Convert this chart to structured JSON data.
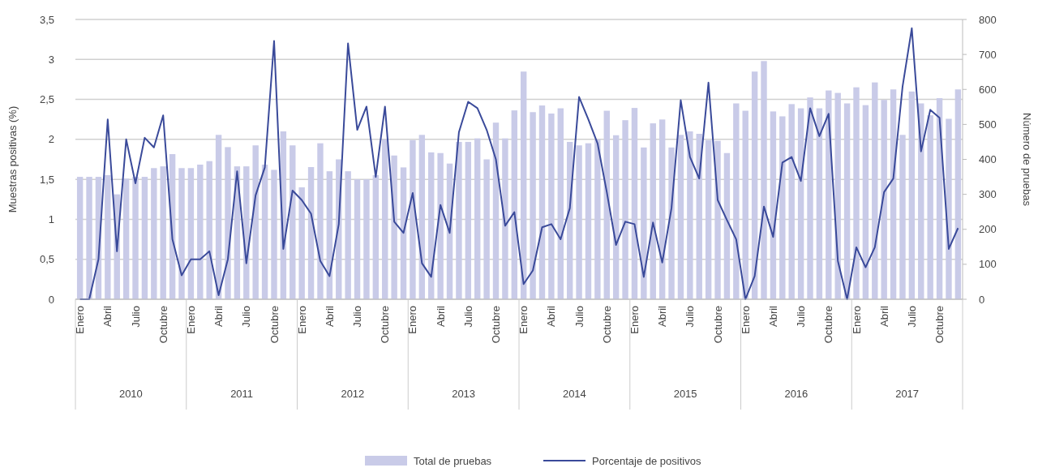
{
  "chart_data": {
    "type": "bar",
    "ylabel": "Muestras positivas (%)",
    "y2label": "Número de pruebas",
    "categories": [
      "Enero",
      null,
      null,
      "Abril",
      null,
      null,
      "Julio",
      null,
      null,
      "Octubre",
      null,
      null,
      "Enero",
      null,
      null,
      "Abril",
      null,
      null,
      "Julio",
      null,
      null,
      "Octubre",
      null,
      null,
      "Enero",
      null,
      null,
      "Abril",
      null,
      null,
      "Julio",
      null,
      null,
      "Octubre",
      null,
      null,
      "Enero",
      null,
      null,
      "Abril",
      null,
      null,
      "Julio",
      null,
      null,
      "Octubre",
      null,
      null,
      "Enero",
      null,
      null,
      "Abril",
      null,
      null,
      "Julio",
      null,
      null,
      "Octubre",
      null,
      null,
      "Enero",
      null,
      null,
      "Abril",
      null,
      null,
      "Julio",
      null,
      null,
      "Octubre",
      null,
      null,
      "Enero",
      null,
      null,
      "Abril",
      null,
      null,
      "Julio",
      null,
      null,
      "Octubre",
      null,
      null,
      "Enero",
      null,
      null,
      "Abril",
      null,
      null,
      "Julio",
      null,
      null,
      "Octubre",
      null,
      null
    ],
    "annotations": [
      "2010",
      "2011",
      "2012",
      "2013",
      "2014",
      "2015",
      "2016",
      "2017"
    ],
    "series": [
      {
        "name": "Total de pruebas",
        "axis": "y2",
        "color": "#c9cbe8",
        "values": [
          350,
          350,
          350,
          355,
          300,
          345,
          350,
          350,
          375,
          380,
          415,
          375,
          375,
          385,
          395,
          470,
          435,
          380,
          380,
          440,
          385,
          370,
          480,
          440,
          320,
          378,
          446,
          366,
          400,
          366,
          343,
          343,
          355,
          457,
          411,
          377,
          455,
          470,
          420,
          418,
          388,
          450,
          450,
          460,
          400,
          505,
          460,
          540,
          651,
          535,
          554,
          531,
          546,
          450,
          440,
          446,
          457,
          539,
          469,
          512,
          547,
          434,
          503,
          514,
          434,
          470,
          480,
          473,
          455,
          453,
          418,
          560,
          539,
          651,
          681,
          537,
          523,
          558,
          546,
          577,
          546,
          597,
          590,
          560,
          606,
          555,
          620,
          570,
          600,
          470,
          594,
          560,
          526,
          575,
          516,
          600
        ]
      },
      {
        "name": "Porcentaje de positivos",
        "type": "line",
        "axis": "y",
        "color": "#3a4a9a",
        "values": [
          0,
          0,
          0.5,
          2.25,
          0.6,
          2.0,
          1.45,
          2.02,
          1.9,
          2.3,
          0.75,
          0.3,
          0.5,
          0.5,
          0.6,
          0.05,
          0.5,
          1.6,
          0.45,
          1.3,
          1.65,
          3.23,
          0.63,
          1.36,
          1.24,
          1.07,
          0.48,
          0.29,
          0.94,
          3.2,
          2.12,
          2.41,
          1.53,
          2.41,
          0.97,
          0.83,
          1.33,
          0.45,
          0.28,
          1.18,
          0.83,
          2.09,
          2.47,
          2.39,
          2.12,
          1.75,
          0.92,
          1.09,
          0.19,
          0.36,
          0.9,
          0.94,
          0.75,
          1.14,
          2.53,
          2.25,
          1.95,
          1.34,
          0.68,
          0.97,
          0.94,
          0.28,
          0.96,
          0.46,
          1.14,
          2.49,
          1.78,
          1.51,
          2.71,
          1.24,
          0.99,
          0.75,
          0,
          0.29,
          1.16,
          0.78,
          1.71,
          1.78,
          1.48,
          2.39,
          2.04,
          2.32,
          0.48,
          0,
          0.65,
          0.4,
          0.65,
          1.34,
          1.51,
          2.66,
          3.39,
          1.85,
          2.37,
          2.27,
          0.63,
          0.89
        ]
      }
    ],
    "ylim": [
      0,
      3.5
    ],
    "yticks": [
      0,
      {
        "value": 0.5,
        "label": "0,5"
      },
      1,
      {
        "value": 1.5,
        "label": "1,5"
      },
      2,
      {
        "value": 2.5,
        "label": "2,5"
      },
      3,
      {
        "value": 3.5,
        "label": "3,5"
      }
    ],
    "y2lim": [
      0,
      800
    ],
    "y2ticks": [
      0,
      100,
      200,
      300,
      400,
      500,
      600,
      700,
      800
    ],
    "grid": "y",
    "legend": "bottom",
    "marker": "none",
    "line_style": "solid"
  }
}
